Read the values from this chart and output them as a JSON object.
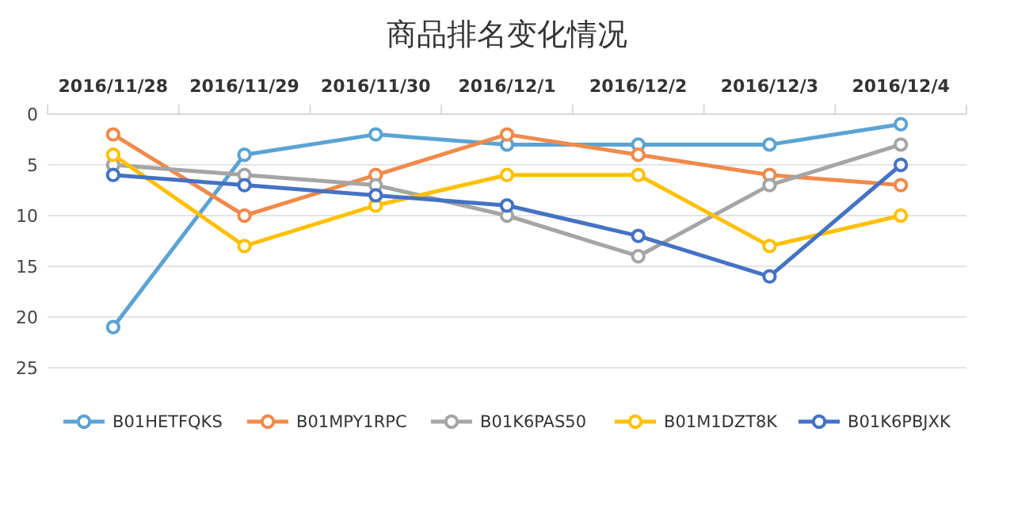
{
  "chart_data": {
    "type": "line",
    "title": "商品排名变化情况",
    "categories": [
      "2016/11/28",
      "2016/11/29",
      "2016/11/30",
      "2016/12/1",
      "2016/12/2",
      "2016/12/3",
      "2016/12/4"
    ],
    "series": [
      {
        "name": "B01HETFQKS",
        "color": "#5ba3d3",
        "values": [
          21,
          4,
          2,
          3,
          3,
          3,
          1
        ]
      },
      {
        "name": "B01MPY1RPC",
        "color": "#f08a4b",
        "values": [
          2,
          10,
          6,
          2,
          4,
          6,
          7
        ]
      },
      {
        "name": "B01K6PAS50",
        "color": "#a5a5a5",
        "values": [
          5,
          6,
          7,
          10,
          14,
          7,
          3
        ]
      },
      {
        "name": "B01M1DZT8K",
        "color": "#ffc000",
        "values": [
          4,
          13,
          9,
          6,
          6,
          13,
          10
        ]
      },
      {
        "name": "B01K6PBJXK",
        "color": "#4472c4",
        "values": [
          6,
          7,
          8,
          9,
          12,
          16,
          5
        ]
      }
    ],
    "ylim": [
      25,
      0
    ],
    "yticks": [
      0,
      5,
      10,
      15,
      20,
      25
    ],
    "grid": "y",
    "legend": "bottom",
    "marker": "circle",
    "line_style": "solid"
  }
}
